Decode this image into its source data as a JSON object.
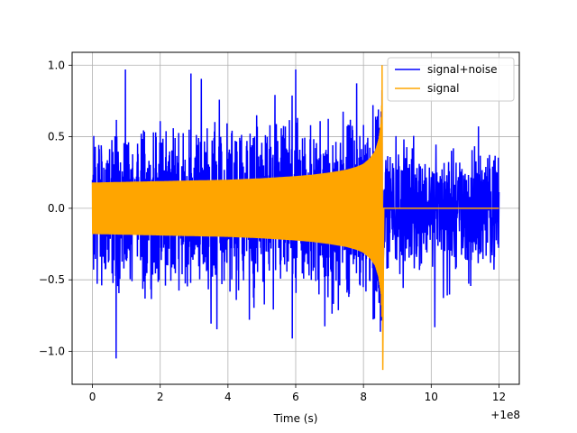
{
  "chart_data": {
    "type": "line",
    "title": "",
    "xlabel": "Time (s)",
    "ylabel": "",
    "x_offset_label": "+1e8",
    "xlim": [
      -0.6,
      12.6
    ],
    "ylim": [
      -1.23,
      1.09
    ],
    "grid": true,
    "legend_position": "top-right",
    "x_ticks": [
      0,
      2,
      4,
      6,
      8,
      10,
      12
    ],
    "x_tick_labels": [
      "0",
      "2",
      "4",
      "6",
      "8",
      "10",
      "12"
    ],
    "y_ticks": [
      -1.0,
      -0.5,
      0.0,
      0.5,
      1.0
    ],
    "y_tick_labels": [
      "−1.0",
      "−0.5",
      "0.0",
      "0.5",
      "1.0"
    ],
    "series": [
      {
        "name": "signal+noise",
        "color": "#0000ff",
        "description": "noisy chirp over full range 0-12",
        "x_range": [
          0,
          12.0
        ],
        "noise_amplitude_range": [
          -0.85,
          0.85
        ],
        "max": 0.97,
        "min": -1.05
      },
      {
        "name": "signal",
        "color": "#ffa500",
        "description": "chirp whose amplitude grows until merger, then zero",
        "x_range": [
          0,
          12.0
        ],
        "envelope_x": [
          0,
          1,
          2,
          3,
          4,
          5,
          6,
          6.5,
          7,
          7.5,
          7.8,
          8.0,
          8.2,
          8.35,
          8.45,
          8.52,
          8.55
        ],
        "envelope_y": [
          0.18,
          0.185,
          0.19,
          0.195,
          0.2,
          0.21,
          0.225,
          0.235,
          0.25,
          0.27,
          0.29,
          0.31,
          0.35,
          0.4,
          0.48,
          0.6,
          0.8
        ],
        "peak_x": 8.55,
        "peak_max": 1.0,
        "peak_min": -1.13,
        "after_peak_value": 0.0
      }
    ]
  }
}
